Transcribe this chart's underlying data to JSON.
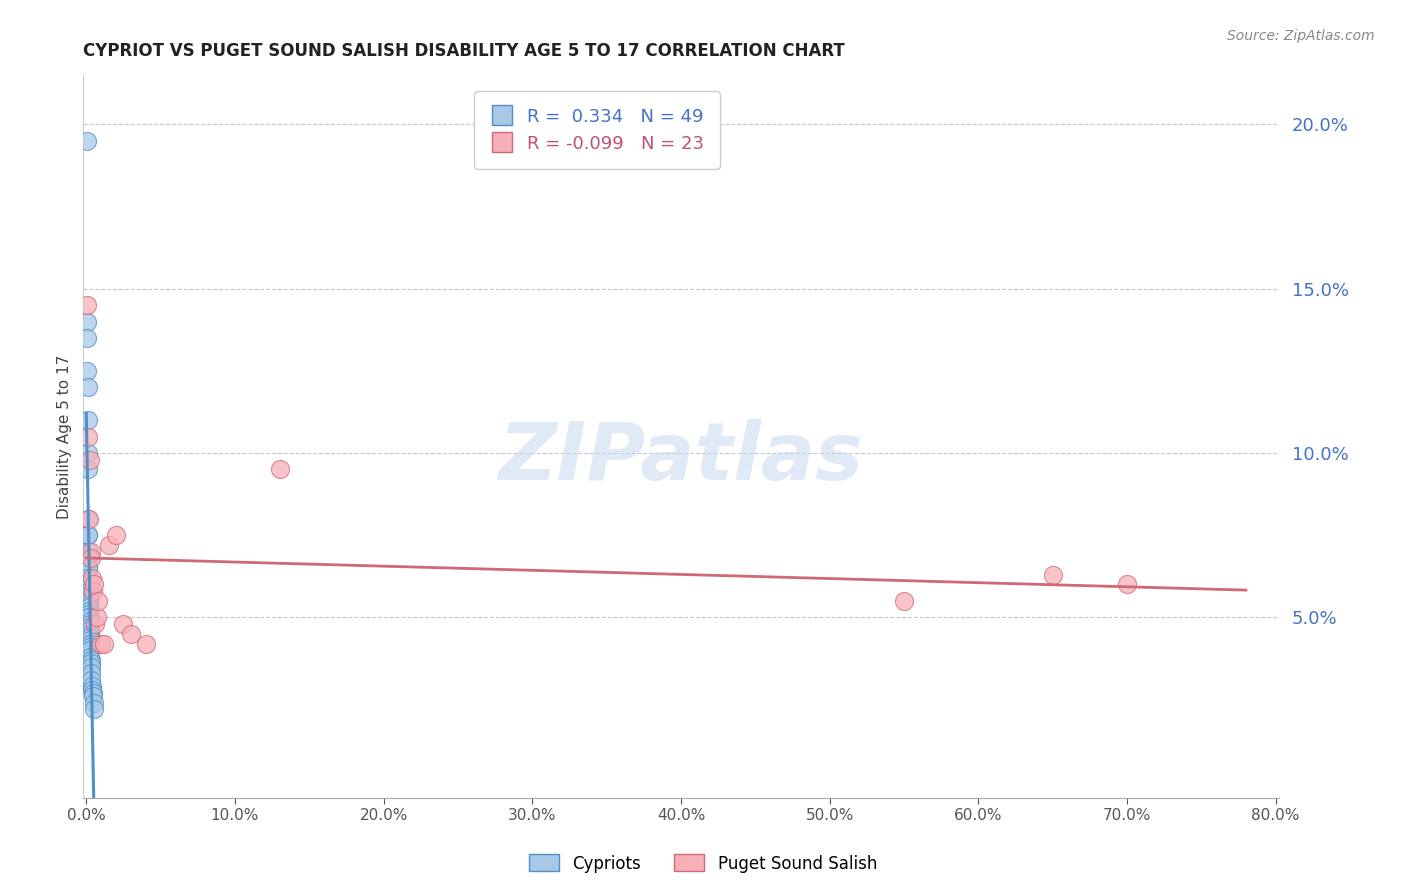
{
  "title": "CYPRIOT VS PUGET SOUND SALISH DISABILITY AGE 5 TO 17 CORRELATION CHART",
  "source": "Source: ZipAtlas.com",
  "ylabel": "Disability Age 5 to 17",
  "R_blue": 0.334,
  "N_blue": 49,
  "R_pink": -0.099,
  "N_pink": 23,
  "blue_fill": "#a8c8e8",
  "blue_edge": "#5090c8",
  "pink_fill": "#f8b0b8",
  "pink_edge": "#d06878",
  "blue_line": "#5090c8",
  "pink_line": "#d06878",
  "axis_label_color": "#4472c4",
  "watermark_text": "ZIPatlas",
  "watermark_color": "#c8d8f0",
  "xlim": [
    -0.002,
    0.802
  ],
  "ylim": [
    -0.005,
    0.215
  ],
  "xticks": [
    0.0,
    0.1,
    0.2,
    0.3,
    0.4,
    0.5,
    0.6,
    0.7,
    0.8
  ],
  "yticks_right": [
    0.05,
    0.1,
    0.15,
    0.2
  ],
  "blue_x": [
    0.0005,
    0.0006,
    0.0007,
    0.0008,
    0.0009,
    0.001,
    0.001,
    0.001,
    0.001,
    0.0011,
    0.0012,
    0.0012,
    0.0013,
    0.0014,
    0.0015,
    0.0015,
    0.0016,
    0.0017,
    0.0017,
    0.0018,
    0.0018,
    0.0019,
    0.0019,
    0.002,
    0.002,
    0.0021,
    0.0021,
    0.0022,
    0.0022,
    0.0023,
    0.0023,
    0.0024,
    0.0024,
    0.0025,
    0.0025,
    0.0026,
    0.0027,
    0.0028,
    0.0029,
    0.003,
    0.0031,
    0.0033,
    0.0035,
    0.0038,
    0.004,
    0.0043,
    0.0046,
    0.005,
    0.0055
  ],
  "blue_y": [
    0.195,
    0.14,
    0.135,
    0.125,
    0.12,
    0.11,
    0.1,
    0.095,
    0.08,
    0.075,
    0.075,
    0.07,
    0.068,
    0.065,
    0.065,
    0.062,
    0.06,
    0.058,
    0.057,
    0.056,
    0.055,
    0.054,
    0.053,
    0.052,
    0.051,
    0.05,
    0.05,
    0.049,
    0.048,
    0.047,
    0.046,
    0.045,
    0.044,
    0.043,
    0.042,
    0.041,
    0.04,
    0.038,
    0.037,
    0.036,
    0.035,
    0.033,
    0.031,
    0.029,
    0.028,
    0.027,
    0.026,
    0.024,
    0.022
  ],
  "pink_x": [
    0.0008,
    0.0015,
    0.002,
    0.0025,
    0.003,
    0.0035,
    0.004,
    0.0045,
    0.005,
    0.006,
    0.007,
    0.008,
    0.01,
    0.012,
    0.015,
    0.02,
    0.025,
    0.03,
    0.04,
    0.13,
    0.55,
    0.65,
    0.7
  ],
  "pink_y": [
    0.145,
    0.105,
    0.08,
    0.098,
    0.07,
    0.068,
    0.062,
    0.058,
    0.06,
    0.048,
    0.05,
    0.055,
    0.042,
    0.042,
    0.072,
    0.075,
    0.048,
    0.045,
    0.042,
    0.095,
    0.055,
    0.063,
    0.06
  ],
  "legend_label_blue": "Cypriots",
  "legend_label_pink": "Puget Sound Salish"
}
